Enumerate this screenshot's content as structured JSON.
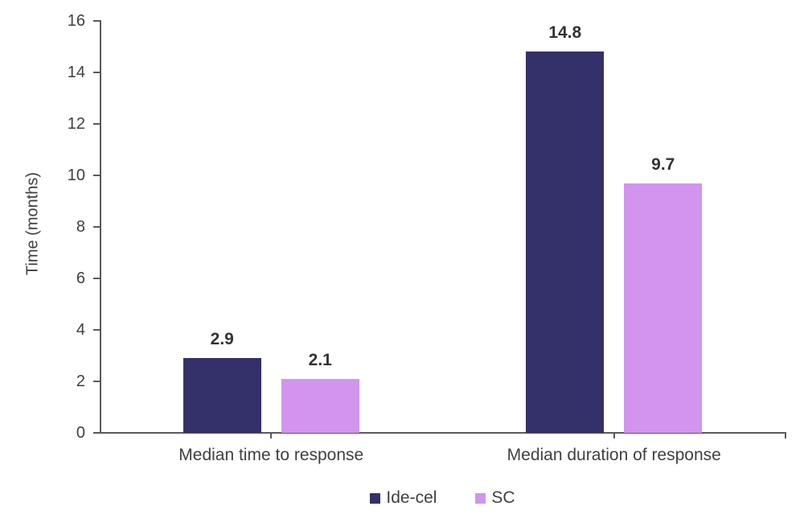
{
  "chart_data": {
    "type": "bar",
    "title": "",
    "categories": [
      "Median time to response",
      "Median duration of response"
    ],
    "series": [
      {
        "name": "Ide-cel",
        "color": "#343069",
        "values": [
          2.9,
          14.8
        ],
        "value_labels": [
          "2.9",
          "14.8"
        ]
      },
      {
        "name": "SC",
        "color": "#D294EE",
        "values": [
          2.1,
          9.7
        ],
        "value_labels": [
          "2.1",
          "9.7"
        ]
      }
    ],
    "xlabel": "",
    "ylabel": "Time (months)",
    "ylim": [
      0,
      16
    ],
    "ytick_step": 2,
    "yticks": [
      "0",
      "2",
      "4",
      "6",
      "8",
      "10",
      "12",
      "14",
      "16"
    ],
    "grid": false,
    "legend": {
      "position": "bottom",
      "entries": [
        "Ide-cel",
        "SC"
      ]
    },
    "colors": {
      "axis": "#5a5a5a",
      "tick_text": "#3f3f3f",
      "value_label_text": "#333333",
      "background": "#ffffff"
    }
  }
}
